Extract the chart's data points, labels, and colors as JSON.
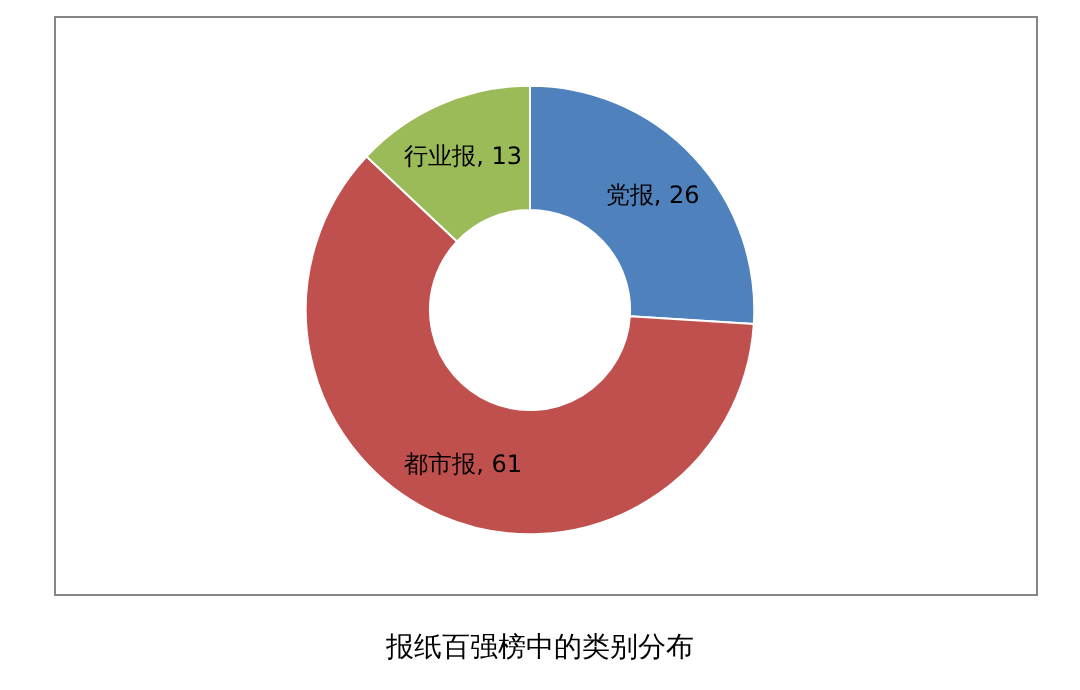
{
  "chart_data": {
    "type": "donut",
    "title": "报纸百强榜中的类别分布",
    "categories": [
      "党报",
      "都市报",
      "行业报"
    ],
    "values": [
      26,
      61,
      13
    ],
    "colors": [
      "#4f81bd",
      "#c0504d",
      "#9bbb59"
    ],
    "value_labels": [
      ", 26",
      ", 61",
      ", 13"
    ],
    "legend": false
  }
}
